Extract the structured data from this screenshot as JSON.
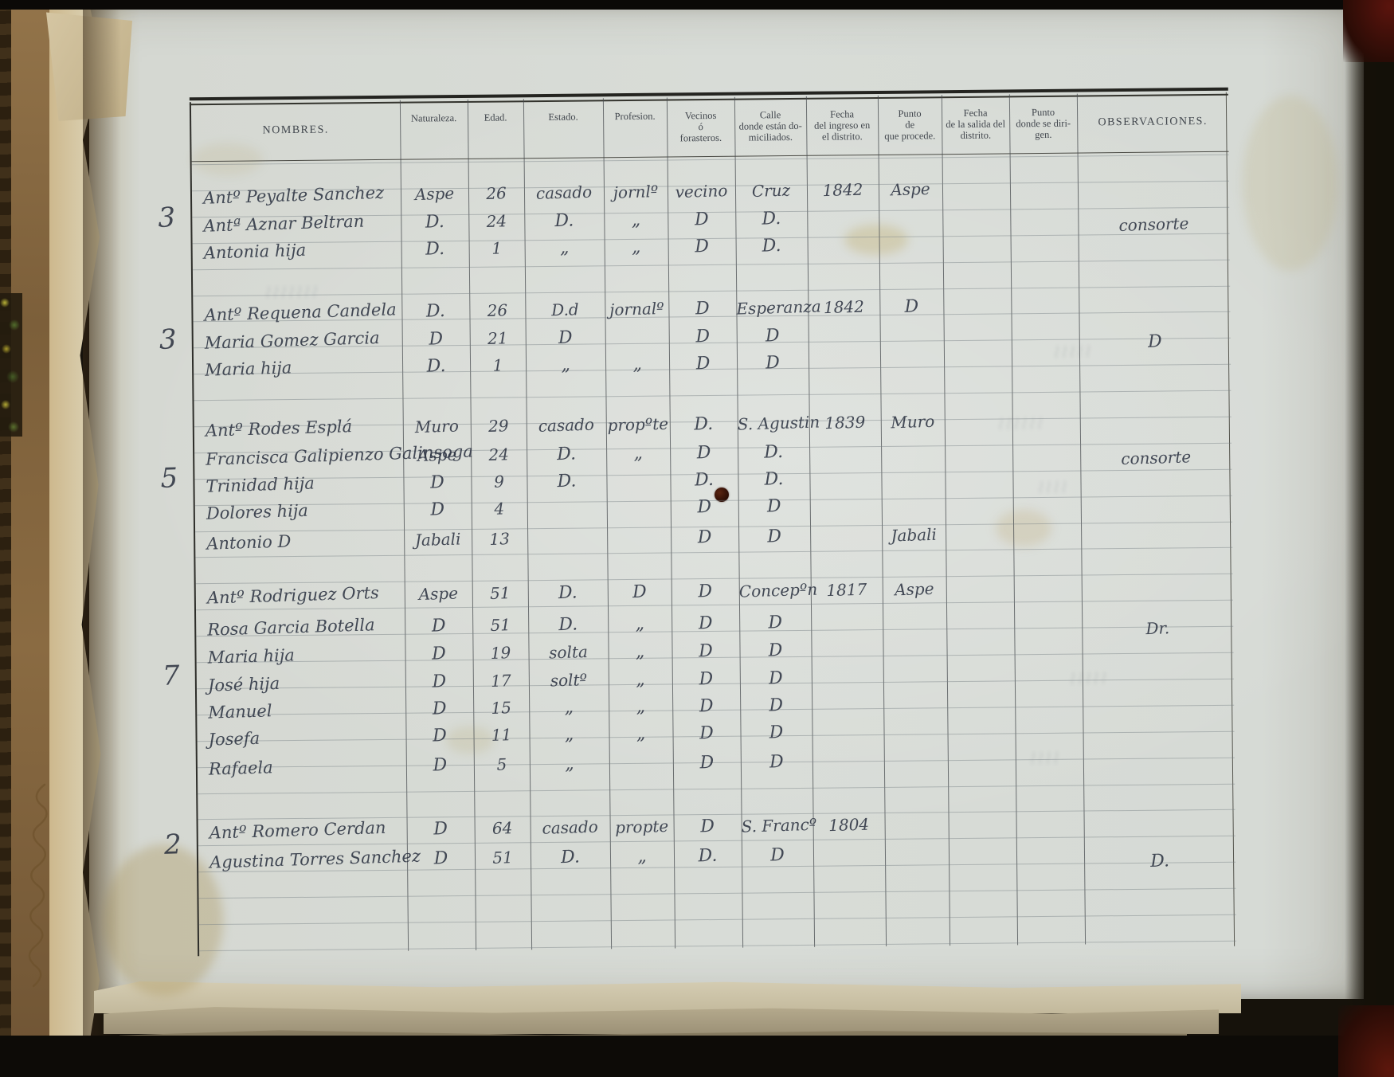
{
  "document": {
    "kind": "handwritten population register page",
    "ink_color": "#39404e",
    "paper_color": "#d7dbd6",
    "headers": [
      "NOMBRES.",
      "Naturaleza.",
      "Edad.",
      "Estado.",
      "Profesion.",
      "Vecinos\nó\nforasteros.",
      "Calle\ndonde están do-\nmiciliados.",
      "Fecha\ndel ingreso en\nel distrito.",
      "Punto\nde\nque procede.",
      "Fecha\nde la salida del\ndistrito.",
      "Punto\ndonde se diri-\ngen.",
      "OBSERVACIONES."
    ],
    "groups": [
      {
        "margin": "3",
        "rows": [
          {
            "name": "Antº Peyalte Sanchez",
            "nat": "Aspe",
            "edad": "26",
            "estado": "casado",
            "prof": "jornlº",
            "vec": "vecino",
            "calle": "Cruz",
            "fing": "1842",
            "pproc": "Aspe",
            "fsal": "",
            "pdir": "",
            "obs": ""
          },
          {
            "name": "Antª Aznar Beltran",
            "nat": "D.",
            "edad": "24",
            "estado": "D.",
            "prof": "„",
            "vec": "D",
            "calle": "D.",
            "fing": "",
            "pproc": "",
            "fsal": "",
            "pdir": "",
            "obs": "consorte"
          },
          {
            "name": "Antonia hija",
            "nat": "D.",
            "edad": "1",
            "estado": "„",
            "prof": "„",
            "vec": "D",
            "calle": "D.",
            "fing": "",
            "pproc": "",
            "fsal": "",
            "pdir": "",
            "obs": ""
          }
        ]
      },
      {
        "margin": "3",
        "rows": [
          {
            "name": "Antº Requena Candela",
            "nat": "D.",
            "edad": "26",
            "estado": "D.d",
            "prof": "jornalº",
            "vec": "D",
            "calle": "Esperanza",
            "fing": "1842",
            "pproc": "D",
            "fsal": "",
            "pdir": "",
            "obs": ""
          },
          {
            "name": "Maria Gomez Garcia",
            "nat": "D",
            "edad": "21",
            "estado": "D",
            "prof": "",
            "vec": "D",
            "calle": "D",
            "fing": "",
            "pproc": "",
            "fsal": "",
            "pdir": "",
            "obs": "D"
          },
          {
            "name": "Maria hija",
            "nat": "D.",
            "edad": "1",
            "estado": "„",
            "prof": "„",
            "vec": "D",
            "calle": "D",
            "fing": "",
            "pproc": "",
            "fsal": "",
            "pdir": "",
            "obs": ""
          }
        ]
      },
      {
        "margin": "5",
        "rows": [
          {
            "name": "Antº Rodes Esplá",
            "nat": "Muro",
            "edad": "29",
            "estado": "casado",
            "prof": "propºte",
            "vec": "D.",
            "calle": "S. Agustin",
            "fing": "1839",
            "pproc": "Muro",
            "fsal": "",
            "pdir": "",
            "obs": ""
          },
          {
            "name": "Francisca Galipienzo Galinsoga",
            "nat": "Aspe",
            "edad": "24",
            "estado": "D.",
            "prof": "„",
            "vec": "D",
            "calle": "D.",
            "fing": "",
            "pproc": "",
            "fsal": "",
            "pdir": "",
            "obs": "consorte"
          },
          {
            "name": "Trinidad hija",
            "nat": "D",
            "edad": "9",
            "estado": "D.",
            "prof": "",
            "vec": "D.",
            "calle": "D.",
            "fing": "",
            "pproc": "",
            "fsal": "",
            "pdir": "",
            "obs": ""
          },
          {
            "name": "Dolores hija",
            "nat": "D",
            "edad": "4",
            "estado": "",
            "prof": "",
            "vec": "D",
            "calle": "D",
            "fing": "",
            "pproc": "",
            "fsal": "",
            "pdir": "",
            "obs": ""
          },
          {
            "name": "Antonio D",
            "nat": "Jabali",
            "edad": "13",
            "estado": "",
            "prof": "",
            "vec": "D",
            "calle": "D",
            "fing": "",
            "pproc": "Jabali",
            "fsal": "",
            "pdir": "",
            "obs": ""
          }
        ]
      },
      {
        "margin": "7",
        "rows": [
          {
            "name": "Antº Rodriguez Orts",
            "nat": "Aspe",
            "edad": "51",
            "estado": "D.",
            "prof": "D",
            "vec": "D",
            "calle": "Concepºn",
            "fing": "1817",
            "pproc": "Aspe",
            "fsal": "",
            "pdir": "",
            "obs": ""
          },
          {
            "name": "Rosa Garcia Botella",
            "nat": "D",
            "edad": "51",
            "estado": "D.",
            "prof": "„",
            "vec": "D",
            "calle": "D",
            "fing": "",
            "pproc": "",
            "fsal": "",
            "pdir": "",
            "obs": "Dr."
          },
          {
            "name": "Maria hija",
            "nat": "D",
            "edad": "19",
            "estado": "solta",
            "prof": "„",
            "vec": "D",
            "calle": "D",
            "fing": "",
            "pproc": "",
            "fsal": "",
            "pdir": "",
            "obs": ""
          },
          {
            "name": "José hija",
            "nat": "D",
            "edad": "17",
            "estado": "soltº",
            "prof": "„",
            "vec": "D",
            "calle": "D",
            "fing": "",
            "pproc": "",
            "fsal": "",
            "pdir": "",
            "obs": ""
          },
          {
            "name": "Manuel",
            "nat": "D",
            "edad": "15",
            "estado": "„",
            "prof": "„",
            "vec": "D",
            "calle": "D",
            "fing": "",
            "pproc": "",
            "fsal": "",
            "pdir": "",
            "obs": ""
          },
          {
            "name": "Josefa",
            "nat": "D",
            "edad": "11",
            "estado": "„",
            "prof": "„",
            "vec": "D",
            "calle": "D",
            "fing": "",
            "pproc": "",
            "fsal": "",
            "pdir": "",
            "obs": ""
          },
          {
            "name": "Rafaela",
            "nat": "D",
            "edad": "5",
            "estado": "„",
            "prof": "",
            "vec": "D",
            "calle": "D",
            "fing": "",
            "pproc": "",
            "fsal": "",
            "pdir": "",
            "obs": ""
          }
        ]
      },
      {
        "margin": "2",
        "rows": [
          {
            "name": "Antº Romero Cerdan",
            "nat": "D",
            "edad": "64",
            "estado": "casado",
            "prof": "propte",
            "vec": "D",
            "calle": "S. Francº",
            "fing": "1804",
            "pproc": "",
            "fsal": "",
            "pdir": "",
            "obs": ""
          },
          {
            "name": "Agustina Torres Sanchez",
            "nat": "D",
            "edad": "51",
            "estado": "D.",
            "prof": "„",
            "vec": "D.",
            "calle": "D",
            "fing": "",
            "pproc": "",
            "fsal": "",
            "pdir": "",
            "obs": "D."
          }
        ]
      }
    ]
  }
}
